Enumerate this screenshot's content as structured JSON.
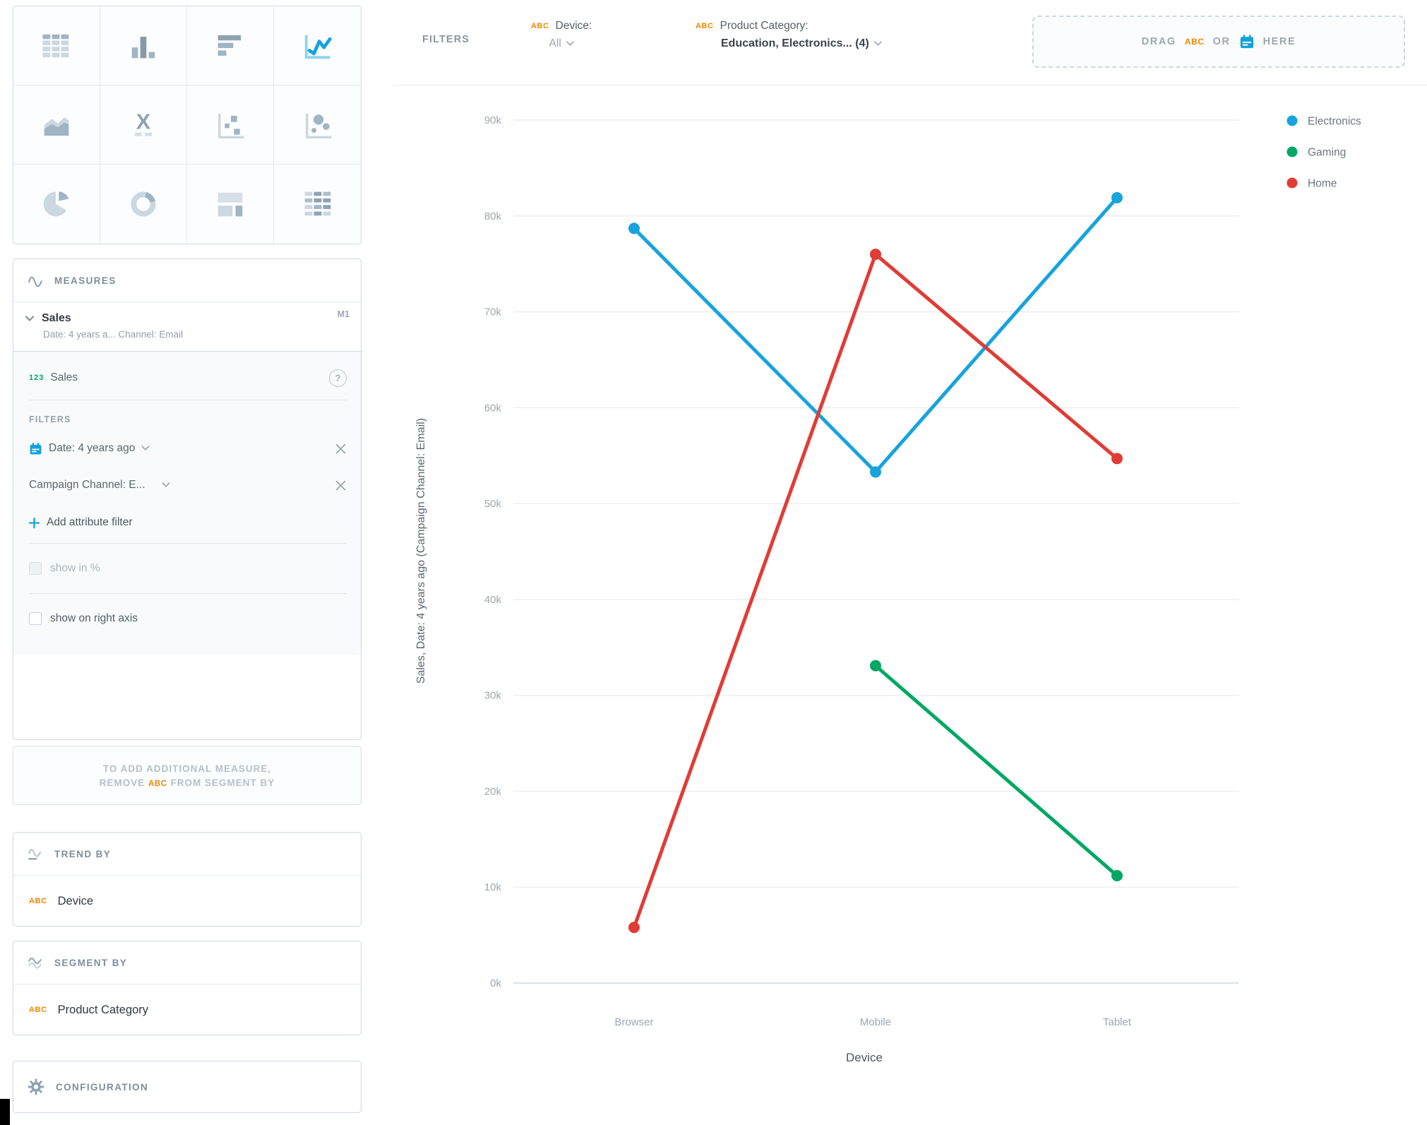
{
  "colors": {
    "accent_blue": "#14A2DC",
    "accent_orange": "#F18600",
    "numeric_green": "#00A65C",
    "series_electronics": "#17A3DD",
    "series_gaming": "#00A863",
    "series_home": "#E03C36"
  },
  "icons": {
    "measures": "pulse-wave",
    "trend_by": "wave-underline",
    "segment_by": "double-wave",
    "configuration": "gear",
    "calendar": "calendar",
    "help": "question-mark-circle",
    "close": "x",
    "chevron": "chevron-down",
    "add": "plus"
  },
  "sidebar": {
    "vis_types": {
      "items": [
        "table",
        "column-chart",
        "bar-chart",
        "line-chart",
        "area-chart",
        "headline",
        "scatter-plot",
        "bubble-chart",
        "pie-chart",
        "donut-chart",
        "treemap",
        "heatmap"
      ],
      "selected": "line-chart"
    },
    "measures": {
      "title": "MEASURES",
      "badge": "M1",
      "name": "Sales",
      "subtitle": "Date: 4 years a... Channel: Email",
      "item_prefix": "123",
      "item_name": "Sales",
      "help": "?",
      "filters_label": "FILTERS",
      "filter_date": "Date: 4 years ago",
      "filter_channel": "Campaign Channel: E...",
      "add_filter": "Add attribute filter",
      "show_in_percent": "show in %",
      "show_right_axis": "show on right axis"
    },
    "note": {
      "line1": "TO ADD ADDITIONAL MEASURE,",
      "pre": "REMOVE",
      "abc": "ABC",
      "post": "FROM SEGMENT BY"
    },
    "trend_by": {
      "title": "TREND BY",
      "abc": "ABC",
      "label": "Device"
    },
    "segment_by": {
      "title": "SEGMENT BY",
      "abc": "ABC",
      "label": "Product Category"
    },
    "configuration": {
      "title": "CONFIGURATION"
    }
  },
  "top_bar": {
    "filters_label": "FILTERS",
    "device": {
      "abc": "ABC",
      "label": "Device:",
      "value": "All"
    },
    "category": {
      "abc": "ABC",
      "label": "Product Category:",
      "value": "Education, Electronics... (4)"
    },
    "drop_zone": {
      "drag": "DRAG",
      "abc": "ABC",
      "or": "OR",
      "here": "HERE"
    }
  },
  "chart_data": {
    "type": "line",
    "categories": [
      "Browser",
      "Mobile",
      "Tablet"
    ],
    "series": [
      {
        "name": "Electronics",
        "color": "#17A3DD",
        "values": [
          78700,
          53300,
          81900
        ]
      },
      {
        "name": "Gaming",
        "color": "#00A863",
        "values": [
          null,
          33100,
          11200
        ]
      },
      {
        "name": "Home",
        "color": "#E03C36",
        "values": [
          5800,
          76000,
          54700
        ]
      }
    ],
    "title": "",
    "xlabel": "Device",
    "ylabel": "Sales, Date: 4 years ago (Campaign Channel: Email)",
    "ylim": [
      0,
      90000
    ],
    "y_ticks": [
      "0k",
      "10k",
      "20k",
      "30k",
      "40k",
      "50k",
      "60k",
      "70k",
      "80k",
      "90k"
    ],
    "grid": true,
    "legend_position": "top-right"
  }
}
